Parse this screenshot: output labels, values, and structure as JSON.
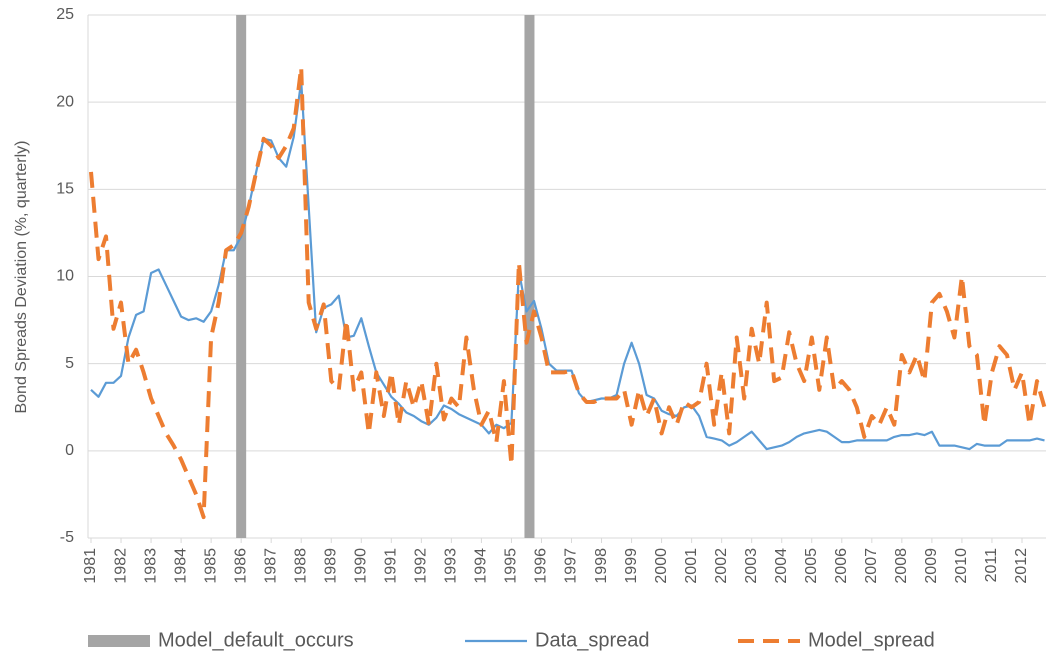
{
  "chart_data": {
    "type": "line",
    "y_label": "Bond Spreads Deviation (%, quarterly)",
    "xlim": [
      1980.9,
      2012.8
    ],
    "xticks": [
      1981,
      1982,
      1983,
      1984,
      1985,
      1986,
      1987,
      1988,
      1989,
      1990,
      1991,
      1992,
      1993,
      1994,
      1995,
      1996,
      1997,
      1998,
      1999,
      2000,
      2001,
      2002,
      2003,
      2004,
      2005,
      2006,
      2007,
      2008,
      2009,
      2010,
      2011,
      2012
    ],
    "ylim": [
      -5,
      25
    ],
    "yticks": [
      -5,
      0,
      5,
      10,
      15,
      20,
      25
    ],
    "grid": true,
    "legend": "bottom",
    "x": [
      1981,
      1981.25,
      1981.5,
      1981.75,
      1982,
      1982.25,
      1982.5,
      1982.75,
      1983,
      1983.25,
      1983.5,
      1983.75,
      1984,
      1984.25,
      1984.5,
      1984.75,
      1985,
      1985.25,
      1985.5,
      1985.75,
      1986,
      1986.25,
      1986.5,
      1986.75,
      1987,
      1987.25,
      1987.5,
      1987.75,
      1988,
      1988.25,
      1988.5,
      1988.75,
      1989,
      1989.25,
      1989.5,
      1989.75,
      1990,
      1990.25,
      1990.5,
      1990.75,
      1991,
      1991.25,
      1991.5,
      1991.75,
      1992,
      1992.25,
      1992.5,
      1992.75,
      1993,
      1993.25,
      1993.5,
      1993.75,
      1994,
      1994.25,
      1994.5,
      1994.75,
      1995,
      1995.25,
      1995.5,
      1995.75,
      1996,
      1996.25,
      1996.5,
      1996.75,
      1997,
      1997.25,
      1997.5,
      1997.75,
      1998,
      1998.25,
      1998.5,
      1998.75,
      1999,
      1999.25,
      1999.5,
      1999.75,
      2000,
      2000.25,
      2000.5,
      2000.75,
      2001,
      2001.25,
      2001.5,
      2001.75,
      2002,
      2002.25,
      2002.5,
      2002.75,
      2003,
      2003.25,
      2003.5,
      2003.75,
      2004,
      2004.25,
      2004.5,
      2004.75,
      2005,
      2005.25,
      2005.5,
      2005.75,
      2006,
      2006.25,
      2006.5,
      2006.75,
      2007,
      2007.25,
      2007.5,
      2007.75,
      2008,
      2008.25,
      2008.5,
      2008.75,
      2009,
      2009.25,
      2009.5,
      2009.75,
      2010,
      2010.25,
      2010.5,
      2010.75,
      2011,
      2011.25,
      2011.5,
      2011.75,
      2012,
      2012.25,
      2012.5,
      2012.75
    ],
    "series": [
      {
        "name": "Model_default_occurs",
        "color": "#a5a5a5",
        "kind": "vline",
        "x": [
          1986,
          1995.6
        ]
      },
      {
        "name": "Data_spread",
        "color": "#5b9bd5",
        "dashed": false,
        "values": [
          3.5,
          3.1,
          3.9,
          3.9,
          4.3,
          6.5,
          7.8,
          8.0,
          10.2,
          10.4,
          9.5,
          8.6,
          7.7,
          7.5,
          7.6,
          7.4,
          8.0,
          9.5,
          11.5,
          11.5,
          12.3,
          14.0,
          16.0,
          17.9,
          17.8,
          16.8,
          16.3,
          18.0,
          21.2,
          14.0,
          6.8,
          8.2,
          8.4,
          8.9,
          6.5,
          6.6,
          7.6,
          6.0,
          4.5,
          3.8,
          3.1,
          2.7,
          2.2,
          2.0,
          1.7,
          1.5,
          1.9,
          2.6,
          2.4,
          2.1,
          1.9,
          1.7,
          1.5,
          1.0,
          1.5,
          1.3,
          1.6,
          10.3,
          8.0,
          8.6,
          7.0,
          5.0,
          4.6,
          4.6,
          4.6,
          3.3,
          2.8,
          2.9,
          3.0,
          3.0,
          3.2,
          5.0,
          6.2,
          5.0,
          3.2,
          3.0,
          2.3,
          2.1,
          2.0,
          2.5,
          2.6,
          2.0,
          0.8,
          0.7,
          0.6,
          0.3,
          0.5,
          0.8,
          1.1,
          0.6,
          0.1,
          0.2,
          0.3,
          0.5,
          0.8,
          1.0,
          1.1,
          1.2,
          1.1,
          0.8,
          0.5,
          0.5,
          0.6,
          0.6,
          0.6,
          0.6,
          0.6,
          0.8,
          0.9,
          0.9,
          1.0,
          0.9,
          1.1,
          0.3,
          0.3,
          0.3,
          0.2,
          0.1,
          0.4,
          0.3,
          0.3,
          0.3,
          0.6,
          0.6,
          0.6,
          0.6,
          0.7,
          0.6
        ]
      },
      {
        "name": "Model_spread",
        "color": "#ed7d31",
        "dashed": true,
        "values": [
          16.0,
          11.0,
          12.3,
          7.0,
          8.5,
          5.0,
          5.8,
          4.5,
          3.0,
          2.0,
          1.0,
          0.3,
          -0.5,
          -1.5,
          -2.5,
          -3.8,
          6.5,
          8.5,
          11.5,
          11.8,
          12.5,
          14.0,
          16.0,
          17.9,
          17.5,
          16.8,
          17.5,
          18.5,
          22.0,
          8.5,
          7.0,
          8.4,
          4.0,
          3.5,
          7.5,
          3.5,
          4.5,
          1.0,
          4.5,
          2.0,
          4.5,
          1.5,
          4.0,
          2.5,
          4.0,
          1.5,
          5.0,
          1.8,
          3.0,
          2.5,
          6.5,
          3.5,
          1.5,
          2.3,
          0.5,
          4.0,
          -0.8,
          10.8,
          6.2,
          8.0,
          6.5,
          4.5,
          4.5,
          4.5,
          4.6,
          3.3,
          2.8,
          2.8,
          3.0,
          3.0,
          3.0,
          3.5,
          1.5,
          3.5,
          2.0,
          3.0,
          1.0,
          2.5,
          1.5,
          2.8,
          2.5,
          2.8,
          5.0,
          1.5,
          4.5,
          1.0,
          6.5,
          3.0,
          7.0,
          5.0,
          8.5,
          4.0,
          4.2,
          6.8,
          5.0,
          4.0,
          6.5,
          3.5,
          6.5,
          3.5,
          4.0,
          3.5,
          2.5,
          0.8,
          2.0,
          1.5,
          2.5,
          1.5,
          5.5,
          4.5,
          5.5,
          4.0,
          8.5,
          9.0,
          8.0,
          6.5,
          10.0,
          6.0,
          5.5,
          1.5,
          4.5,
          6.0,
          5.5,
          3.5,
          4.5,
          1.5,
          4.0,
          2.5
        ]
      }
    ]
  }
}
